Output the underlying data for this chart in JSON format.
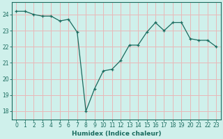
{
  "x": [
    0,
    1,
    2,
    3,
    4,
    5,
    6,
    7,
    8,
    9,
    10,
    11,
    12,
    13,
    14,
    15,
    16,
    17,
    18,
    19,
    20,
    21,
    22,
    23
  ],
  "y": [
    24.2,
    24.2,
    24.0,
    23.9,
    23.9,
    23.6,
    23.7,
    22.9,
    18.0,
    19.4,
    20.5,
    20.6,
    21.15,
    22.1,
    22.1,
    22.9,
    23.5,
    23.0,
    23.5,
    23.5,
    22.5,
    22.4,
    22.4,
    22.0
  ],
  "xlabel": "Humidex (Indice chaleur)",
  "ylim": [
    17.5,
    24.75
  ],
  "xlim": [
    -0.5,
    23.5
  ],
  "line_color": "#1a6b5e",
  "bg_color": "#cff0eb",
  "grid_color": "#e8b8b8",
  "yticks": [
    18,
    19,
    20,
    21,
    22,
    23,
    24
  ],
  "xticks": [
    0,
    1,
    2,
    3,
    4,
    5,
    6,
    7,
    8,
    9,
    10,
    11,
    12,
    13,
    14,
    15,
    16,
    17,
    18,
    19,
    20,
    21,
    22,
    23
  ],
  "tick_fontsize": 5.5,
  "xlabel_fontsize": 6.5,
  "marker_size": 3.5,
  "linewidth": 0.9
}
